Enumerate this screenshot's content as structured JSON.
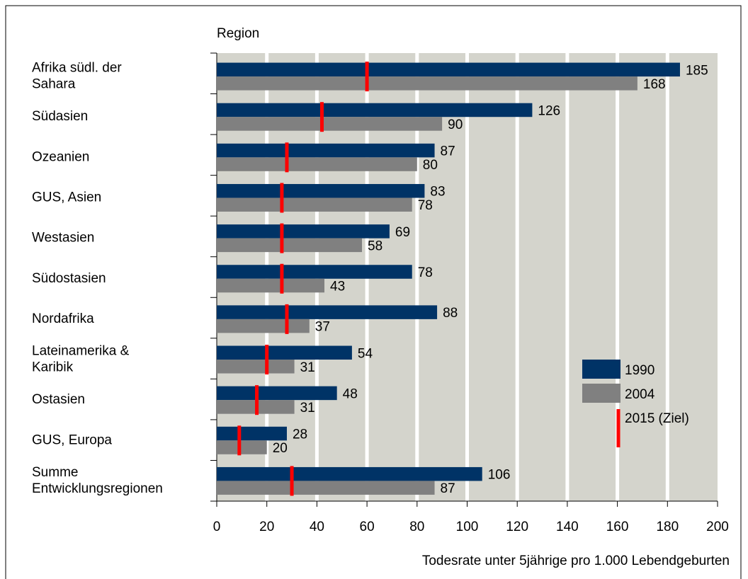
{
  "chart_data": {
    "type": "bar",
    "orientation": "horizontal",
    "y_label": "Region",
    "x_label": "Todesrate unter 5jährige pro 1.000 Lebendgeburten",
    "categories": [
      "Afrika südl. der\nSahara",
      "Südasien",
      "Ozeanien",
      "GUS, Asien",
      "Westasien",
      "Südostasien",
      "Nordafrika",
      "Lateinamerika &\nKaribik",
      "Ostasien",
      "GUS, Europa",
      "Summe\nEntwicklungsregionen"
    ],
    "series": [
      {
        "name": "1990",
        "color": "#003366",
        "values": [
          185,
          126,
          87,
          83,
          69,
          78,
          88,
          54,
          48,
          28,
          106
        ]
      },
      {
        "name": "2004",
        "color": "#808080",
        "values": [
          168,
          90,
          80,
          78,
          58,
          43,
          37,
          31,
          31,
          20,
          87
        ]
      },
      {
        "name": "2015 (Ziel)",
        "color": "#ff0000",
        "marker": "line",
        "values": [
          60,
          42,
          28,
          26,
          26,
          26,
          28,
          20,
          16,
          9,
          30
        ]
      }
    ],
    "xlim": [
      0,
      200
    ],
    "xticks": [
      0,
      20,
      40,
      60,
      80,
      100,
      120,
      140,
      160,
      180,
      200
    ],
    "grid": true,
    "legend": "right",
    "background": "#d4d4cc"
  }
}
